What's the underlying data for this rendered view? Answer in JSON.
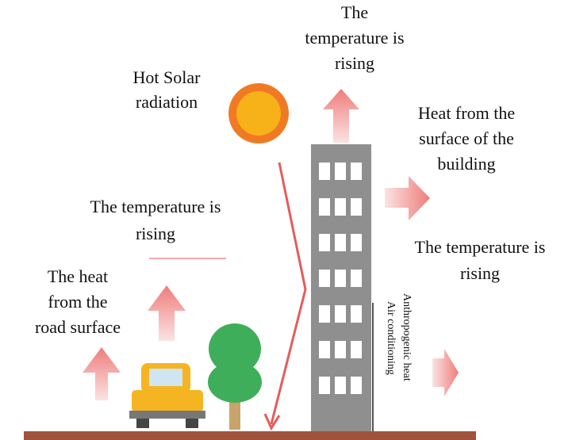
{
  "labels": {
    "top_temperature": [
      "The",
      "temperature is",
      "rising"
    ],
    "solar": [
      "Hot Solar",
      "radiation"
    ],
    "building_heat": [
      "Heat from the",
      "surface of the",
      "building"
    ],
    "left_temperature": [
      "The temperature is",
      "rising"
    ],
    "right_temperature": [
      "The temperature is",
      "rising"
    ],
    "road_heat": [
      "The heat",
      "from the",
      "road surface"
    ],
    "anthropogenic": [
      "Anthropogenic heat",
      "Air conditioning"
    ]
  }
}
